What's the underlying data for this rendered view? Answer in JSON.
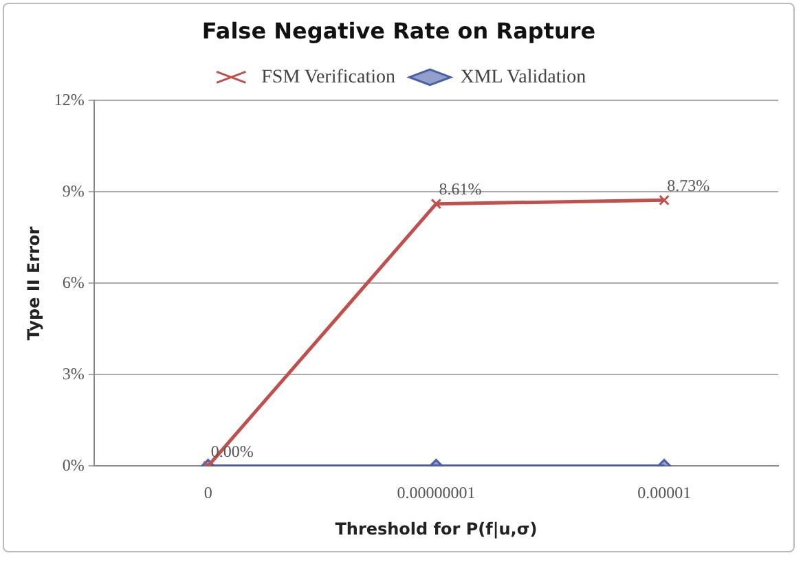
{
  "chart_data": {
    "type": "line",
    "title": "False Negative Rate on Rapture",
    "xlabel": "Threshold for P(f|u,σ)",
    "ylabel": "Type II Error",
    "categories": [
      "0",
      "0.00000001",
      "0.00001"
    ],
    "series": [
      {
        "name": "FSM Verification",
        "color": "#c0504d",
        "values": [
          0,
          8.61,
          8.73
        ],
        "marker": "cross",
        "value_labels": [
          "0.00%",
          "8.61%",
          "8.73%"
        ]
      },
      {
        "name": "XML Validation",
        "color": "#4a5fa8",
        "values": [
          0,
          0,
          0
        ],
        "marker": "diamond"
      }
    ],
    "ylim": [
      0,
      12
    ],
    "yticks": [
      {
        "value": 0,
        "label": "0%"
      },
      {
        "value": 3,
        "label": "3%"
      },
      {
        "value": 6,
        "label": "6%"
      },
      {
        "value": 9,
        "label": "9%"
      },
      {
        "value": 12,
        "label": "12%"
      }
    ],
    "grid": "y",
    "legend": "top"
  }
}
